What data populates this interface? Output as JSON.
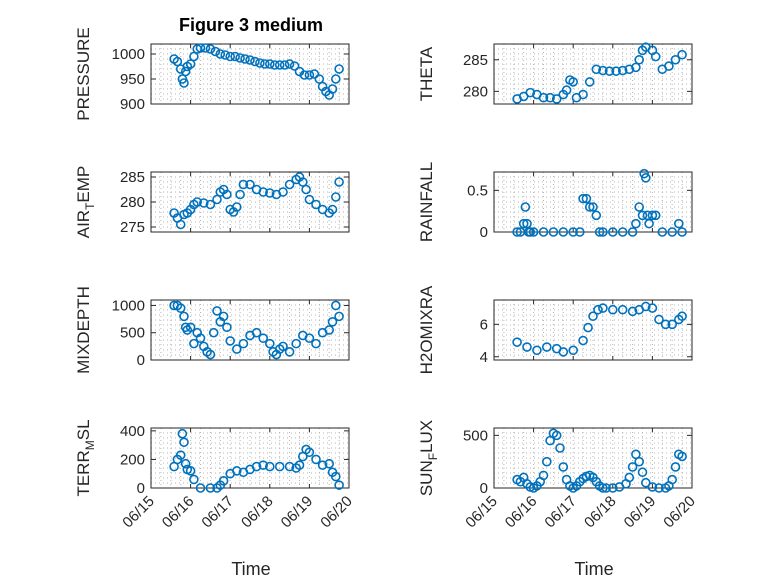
{
  "title": "Figure 3 medium",
  "xlabel": "Time",
  "colors": {
    "marker": "#0072BD",
    "axis": "#262626",
    "grid": "#b5b5b5"
  },
  "x_ticks": [
    "06/15",
    "06/16",
    "06/17",
    "06/18",
    "06/19",
    "06/20"
  ],
  "chart_data": [
    {
      "type": "scatter",
      "ylabel": "PRESSURE",
      "ylim": [
        900,
        1020
      ],
      "yticks": [
        900,
        950,
        1000
      ],
      "x": [
        "06/15 14:00",
        "06/15 16:00",
        "06/15 18:00",
        "06/15 19:00",
        "06/15 20:00",
        "06/15 21:00",
        "06/15 22:00",
        "06/16 00:00",
        "06/16 02:00",
        "06/16 04:00",
        "06/16 06:00",
        "06/16 09:00",
        "06/16 12:00",
        "06/16 15:00",
        "06/16 18:00",
        "06/16 21:00",
        "06/17 00:00",
        "06/17 03:00",
        "06/17 06:00",
        "06/17 09:00",
        "06/17 12:00",
        "06/17 15:00",
        "06/17 18:00",
        "06/17 21:00",
        "06/18 00:00",
        "06/18 03:00",
        "06/18 06:00",
        "06/18 09:00",
        "06/18 12:00",
        "06/18 15:00",
        "06/18 18:00",
        "06/18 21:00",
        "06/19 00:00",
        "06/19 03:00",
        "06/19 06:00",
        "06/19 08:00",
        "06/19 10:00",
        "06/19 12:00",
        "06/19 14:00",
        "06/19 16:00",
        "06/19 18:00"
      ],
      "y": [
        990,
        985,
        970,
        950,
        942,
        965,
        975,
        980,
        995,
        1010,
        1012,
        1012,
        1010,
        1005,
        1000,
        998,
        995,
        995,
        992,
        990,
        988,
        985,
        982,
        980,
        980,
        978,
        978,
        978,
        980,
        976,
        965,
        958,
        958,
        960,
        950,
        935,
        925,
        918,
        930,
        950,
        970
      ]
    },
    {
      "type": "scatter",
      "ylabel": "THETA",
      "ylim": [
        278,
        287.5
      ],
      "yticks": [
        280,
        285
      ],
      "x": [
        "06/15 14:00",
        "06/15 18:00",
        "06/15 22:00",
        "06/16 02:00",
        "06/16 06:00",
        "06/16 10:00",
        "06/16 14:00",
        "06/16 18:00",
        "06/16 20:00",
        "06/16 22:00",
        "06/17 00:00",
        "06/17 02:00",
        "06/17 06:00",
        "06/17 10:00",
        "06/17 14:00",
        "06/17 18:00",
        "06/17 22:00",
        "06/18 02:00",
        "06/18 06:00",
        "06/18 10:00",
        "06/18 14:00",
        "06/18 16:00",
        "06/18 18:00",
        "06/18 20:00",
        "06/19 00:00",
        "06/19 02:00",
        "06/19 06:00",
        "06/19 10:00",
        "06/19 14:00",
        "06/19 18:00"
      ],
      "y": [
        278.8,
        279.2,
        279.8,
        279.5,
        279.0,
        279.0,
        278.8,
        279.5,
        280.2,
        281.8,
        281.5,
        279.0,
        279.5,
        281.5,
        283.5,
        283.3,
        283.2,
        283.2,
        283.3,
        283.5,
        283.8,
        285.0,
        286.5,
        287.0,
        286.5,
        285.5,
        283.5,
        284.0,
        285.0,
        285.8
      ]
    },
    {
      "type": "scatter",
      "ylabel": "AIR_TEMP",
      "ylim": [
        274,
        286
      ],
      "yticks": [
        275,
        280,
        285
      ],
      "x": [
        "06/15 14:00",
        "06/15 16:00",
        "06/15 18:00",
        "06/15 20:00",
        "06/15 22:00",
        "06/16 00:00",
        "06/16 02:00",
        "06/16 04:00",
        "06/16 08:00",
        "06/16 12:00",
        "06/16 16:00",
        "06/16 18:00",
        "06/16 20:00",
        "06/16 22:00",
        "06/17 00:00",
        "06/17 02:00",
        "06/17 04:00",
        "06/17 06:00",
        "06/17 08:00",
        "06/17 12:00",
        "06/17 16:00",
        "06/17 20:00",
        "06/18 00:00",
        "06/18 04:00",
        "06/18 08:00",
        "06/18 12:00",
        "06/18 16:00",
        "06/18 18:00",
        "06/18 20:00",
        "06/18 22:00",
        "06/19 00:00",
        "06/19 04:00",
        "06/19 08:00",
        "06/19 12:00",
        "06/19 14:00",
        "06/19 16:00",
        "06/19 18:00"
      ],
      "y": [
        277.8,
        276.8,
        275.5,
        277.5,
        277.8,
        278.5,
        279.5,
        280.0,
        279.8,
        279.5,
        280.5,
        282.0,
        282.5,
        281.5,
        278.5,
        278.0,
        279.0,
        281.5,
        283.5,
        283.5,
        282.5,
        282.0,
        281.8,
        281.5,
        282.0,
        283.5,
        284.5,
        285.0,
        284.0,
        282.5,
        280.5,
        279.5,
        278.5,
        277.8,
        278.5,
        281.0,
        284.0
      ]
    },
    {
      "type": "scatter",
      "ylabel": "RAINFALL",
      "ylim": [
        0,
        0.72
      ],
      "yticks": [
        0,
        0.5
      ],
      "x": [
        "06/15 14:00",
        "06/15 16:00",
        "06/15 18:00",
        "06/15 19:00",
        "06/15 20:00",
        "06/15 21:00",
        "06/15 22:00",
        "06/16 00:00",
        "06/16 06:00",
        "06/16 12:00",
        "06/16 18:00",
        "06/17 00:00",
        "06/17 04:00",
        "06/17 06:00",
        "06/17 08:00",
        "06/17 10:00",
        "06/17 12:00",
        "06/17 14:00",
        "06/17 16:00",
        "06/17 18:00",
        "06/18 00:00",
        "06/18 06:00",
        "06/18 12:00",
        "06/18 14:00",
        "06/18 16:00",
        "06/18 18:00",
        "06/18 19:00",
        "06/18 20:00",
        "06/18 21:00",
        "06/18 22:00",
        "06/19 00:00",
        "06/19 02:00",
        "06/19 06:00",
        "06/19 12:00",
        "06/19 16:00",
        "06/19 18:00"
      ],
      "y": [
        0,
        0,
        0.1,
        0.3,
        0.1,
        0,
        0,
        0,
        0,
        0,
        0,
        0,
        0,
        0.4,
        0.4,
        0.3,
        0.3,
        0.2,
        0,
        0,
        0,
        0,
        0,
        0.1,
        0.3,
        0.2,
        0.7,
        0.65,
        0.2,
        0.1,
        0.2,
        0.2,
        0,
        0,
        0.1,
        0
      ]
    },
    {
      "type": "scatter",
      "ylabel": "MIXDEPTH",
      "ylim": [
        0,
        1100
      ],
      "yticks": [
        0,
        500,
        1000
      ],
      "x": [
        "06/15 14:00",
        "06/15 16:00",
        "06/15 18:00",
        "06/15 20:00",
        "06/15 21:00",
        "06/15 22:00",
        "06/16 00:00",
        "06/16 02:00",
        "06/16 04:00",
        "06/16 06:00",
        "06/16 08:00",
        "06/16 10:00",
        "06/16 12:00",
        "06/16 14:00",
        "06/16 16:00",
        "06/16 18:00",
        "06/16 20:00",
        "06/16 22:00",
        "06/17 00:00",
        "06/17 04:00",
        "06/17 08:00",
        "06/17 12:00",
        "06/17 16:00",
        "06/17 20:00",
        "06/18 00:00",
        "06/18 02:00",
        "06/18 04:00",
        "06/18 06:00",
        "06/18 08:00",
        "06/18 12:00",
        "06/18 16:00",
        "06/18 20:00",
        "06/19 00:00",
        "06/19 04:00",
        "06/19 08:00",
        "06/19 12:00",
        "06/19 14:00",
        "06/19 16:00",
        "06/19 18:00"
      ],
      "y": [
        1000,
        1000,
        950,
        800,
        600,
        550,
        600,
        300,
        500,
        400,
        250,
        150,
        100,
        500,
        900,
        700,
        800,
        600,
        350,
        200,
        300,
        450,
        500,
        400,
        300,
        150,
        100,
        200,
        250,
        150,
        300,
        450,
        400,
        300,
        500,
        550,
        700,
        1000,
        800
      ]
    },
    {
      "type": "scatter",
      "ylabel": "H2OMIXRA",
      "ylim": [
        3.8,
        7.5
      ],
      "yticks": [
        4,
        6
      ],
      "x": [
        "06/15 14:00",
        "06/15 20:00",
        "06/16 02:00",
        "06/16 08:00",
        "06/16 14:00",
        "06/16 18:00",
        "06/17 00:00",
        "06/17 06:00",
        "06/17 09:00",
        "06/17 12:00",
        "06/17 15:00",
        "06/17 18:00",
        "06/18 00:00",
        "06/18 06:00",
        "06/18 12:00",
        "06/18 16:00",
        "06/18 20:00",
        "06/19 00:00",
        "06/19 04:00",
        "06/19 08:00",
        "06/19 12:00",
        "06/19 16:00",
        "06/19 18:00"
      ],
      "y": [
        4.9,
        4.6,
        4.4,
        4.6,
        4.5,
        4.3,
        4.4,
        5.0,
        5.8,
        6.5,
        6.9,
        7.0,
        6.9,
        6.9,
        6.8,
        6.9,
        7.1,
        7.0,
        6.3,
        6.0,
        6.0,
        6.3,
        6.5
      ]
    },
    {
      "type": "scatter",
      "ylabel": "TERR_MSL",
      "ylim": [
        0,
        420
      ],
      "yticks": [
        0,
        200,
        400
      ],
      "x": [
        "06/15 14:00",
        "06/15 16:00",
        "06/15 18:00",
        "06/15 19:00",
        "06/15 20:00",
        "06/15 21:00",
        "06/15 22:00",
        "06/16 00:00",
        "06/16 02:00",
        "06/16 06:00",
        "06/16 12:00",
        "06/16 16:00",
        "06/16 18:00",
        "06/16 20:00",
        "06/17 00:00",
        "06/17 04:00",
        "06/17 08:00",
        "06/17 12:00",
        "06/17 16:00",
        "06/17 20:00",
        "06/18 00:00",
        "06/18 06:00",
        "06/18 12:00",
        "06/18 16:00",
        "06/18 18:00",
        "06/18 20:00",
        "06/18 22:00",
        "06/19 00:00",
        "06/19 04:00",
        "06/19 08:00",
        "06/19 12:00",
        "06/19 14:00",
        "06/19 16:00",
        "06/19 18:00"
      ],
      "y": [
        150,
        200,
        230,
        380,
        320,
        170,
        130,
        120,
        60,
        0,
        0,
        0,
        20,
        50,
        100,
        120,
        110,
        130,
        150,
        160,
        150,
        150,
        150,
        140,
        160,
        220,
        270,
        250,
        200,
        160,
        170,
        110,
        80,
        20
      ]
    },
    {
      "type": "scatter",
      "ylabel": "SUN_FLUX",
      "ylim": [
        0,
        570
      ],
      "yticks": [
        0,
        500
      ],
      "x": [
        "06/15 14:00",
        "06/15 16:00",
        "06/15 18:00",
        "06/15 20:00",
        "06/15 22:00",
        "06/16 00:00",
        "06/16 02:00",
        "06/16 04:00",
        "06/16 06:00",
        "06/16 08:00",
        "06/16 10:00",
        "06/16 12:00",
        "06/16 14:00",
        "06/16 16:00",
        "06/16 18:00",
        "06/16 20:00",
        "06/16 22:00",
        "06/17 00:00",
        "06/17 02:00",
        "06/17 04:00",
        "06/17 06:00",
        "06/17 08:00",
        "06/17 10:00",
        "06/17 12:00",
        "06/17 14:00",
        "06/17 16:00",
        "06/17 18:00",
        "06/17 20:00",
        "06/18 00:00",
        "06/18 04:00",
        "06/18 08:00",
        "06/18 10:00",
        "06/18 12:00",
        "06/18 14:00",
        "06/18 16:00",
        "06/18 18:00",
        "06/18 20:00",
        "06/19 00:00",
        "06/19 04:00",
        "06/19 08:00",
        "06/19 10:00",
        "06/19 12:00",
        "06/19 14:00",
        "06/19 16:00",
        "06/19 18:00"
      ],
      "y": [
        80,
        60,
        100,
        40,
        10,
        0,
        20,
        60,
        120,
        250,
        450,
        520,
        500,
        380,
        200,
        80,
        20,
        0,
        20,
        60,
        90,
        110,
        120,
        100,
        60,
        20,
        0,
        0,
        0,
        10,
        40,
        100,
        200,
        320,
        250,
        150,
        50,
        10,
        0,
        0,
        20,
        80,
        200,
        320,
        300
      ]
    }
  ]
}
